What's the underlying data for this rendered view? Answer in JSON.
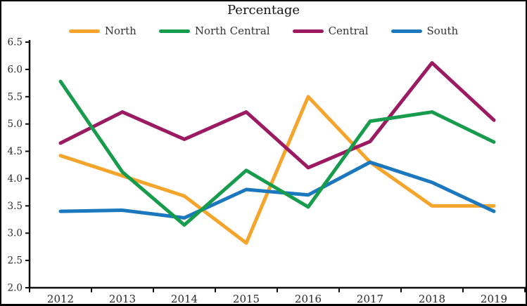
{
  "chart_data": {
    "type": "line",
    "title": "Percentage",
    "x": [
      "2012",
      "2013",
      "2014",
      "2015",
      "2016",
      "2017",
      "2018",
      "2019"
    ],
    "series": [
      {
        "name": "North",
        "color": "#F5A42C",
        "values": [
          4.42,
          4.05,
          3.68,
          2.82,
          5.5,
          4.3,
          3.5,
          3.5
        ]
      },
      {
        "name": "North Central",
        "color": "#179C4D",
        "values": [
          5.78,
          4.12,
          3.15,
          4.15,
          3.48,
          5.05,
          5.22,
          4.67
        ]
      },
      {
        "name": "Central",
        "color": "#9C1A62",
        "values": [
          4.65,
          5.22,
          4.72,
          5.22,
          4.2,
          4.68,
          6.12,
          5.07
        ]
      },
      {
        "name": "South",
        "color": "#1B78BE",
        "values": [
          3.4,
          3.42,
          3.28,
          3.8,
          3.7,
          4.3,
          3.93,
          3.4
        ]
      }
    ],
    "ylim": [
      2.0,
      6.5
    ],
    "yticks": [
      "2.0",
      "2.5",
      "3.0",
      "3.5",
      "4.0",
      "4.5",
      "5.0",
      "5.5",
      "6.0",
      "6.5"
    ],
    "xlabel": "",
    "ylabel": "",
    "legend_position": "top",
    "grid": false,
    "axis_color": "#0d0d0d",
    "text_color": "#2b2b2b"
  }
}
